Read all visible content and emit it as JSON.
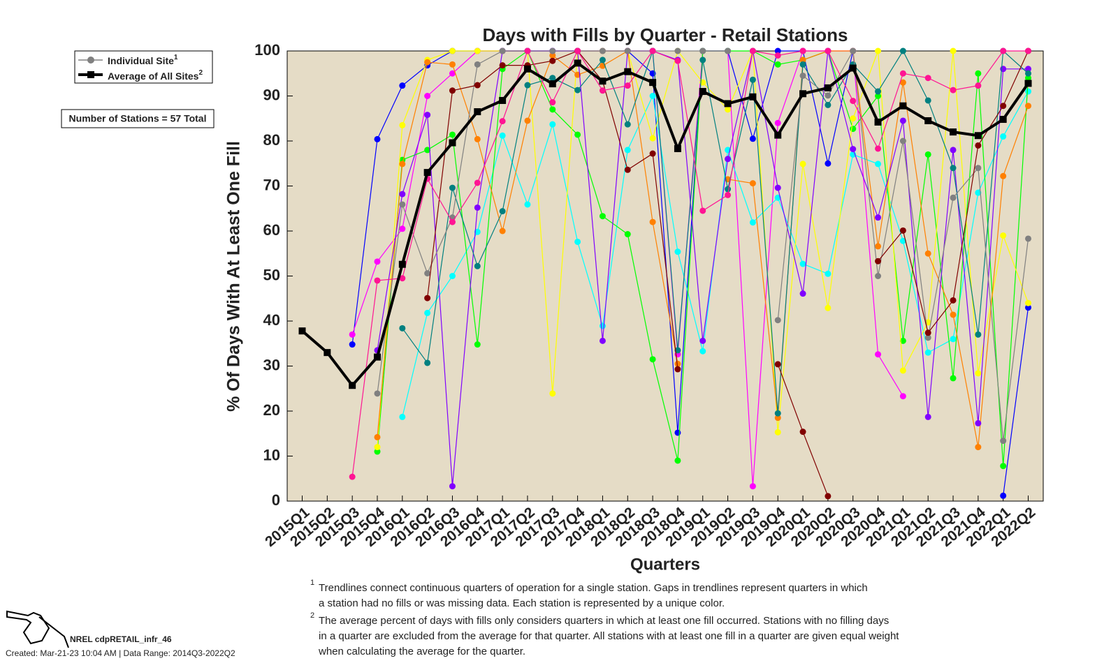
{
  "chart_data": {
    "type": "line",
    "title": "Days with Fills by Quarter - Retail Stations",
    "xlabel": "Quarters",
    "ylabel": "% Of Days With At Least One Fill",
    "categories": [
      "2015Q1",
      "2015Q2",
      "2015Q3",
      "2015Q4",
      "2016Q1",
      "2016Q2",
      "2016Q3",
      "2016Q4",
      "2017Q1",
      "2017Q2",
      "2017Q3",
      "2017Q4",
      "2018Q1",
      "2018Q2",
      "2018Q3",
      "2018Q4",
      "2019Q1",
      "2019Q2",
      "2019Q3",
      "2019Q4",
      "2020Q1",
      "2020Q2",
      "2020Q3",
      "2020Q4",
      "2021Q1",
      "2021Q2",
      "2021Q3",
      "2021Q4",
      "2022Q1",
      "2022Q2"
    ],
    "ylim": [
      0,
      100
    ],
    "yticks": [
      0,
      10,
      20,
      30,
      40,
      50,
      60,
      70,
      80,
      90,
      100
    ],
    "background": "#e5dcc6",
    "series": [
      {
        "name": "Individual Site",
        "note": "1",
        "color": "#808080",
        "sites": [
          {
            "color": "#0000ff",
            "values": [
              null,
              null,
              34.8,
              80.4,
              92.3,
              96.8,
              100,
              100,
              100,
              100,
              100,
              100,
              100,
              100,
              95,
              15.2,
              100,
              100,
              80.5,
              100,
              100,
              75,
              100,
              null,
              null,
              null,
              null,
              null,
              1.2,
              43
            ]
          },
          {
            "color": "#ff00ff",
            "values": [
              null,
              null,
              37,
              53.2,
              60.5,
              90,
              95,
              100,
              100,
              100,
              100,
              100,
              100,
              100,
              100,
              32.6,
              100,
              100,
              3.3,
              84,
              100,
              100,
              100,
              32.6,
              23.3,
              null,
              null,
              null,
              null,
              null
            ]
          },
          {
            "color": "#00ffff",
            "values": [
              null,
              null,
              null,
              null,
              18.7,
              41.8,
              50,
              59.8,
              81.2,
              65.9,
              83.7,
              57.6,
              38.9,
              78,
              90,
              55.4,
              33.3,
              78,
              61.9,
              67.4,
              52.7,
              50.5,
              77,
              74.9,
              57.8,
              33,
              36,
              68.5,
              81,
              91
            ]
          },
          {
            "color": "#00ff00",
            "values": [
              null,
              null,
              null,
              11,
              75.8,
              78,
              81.4,
              34.8,
              96,
              100,
              87,
              81.4,
              63.3,
              59.3,
              31.5,
              9,
              100,
              100,
              100,
              97,
              98,
              100,
              82.7,
              90,
              35.6,
              77,
              27.3,
              95,
              7.8,
              94
            ]
          },
          {
            "color": "#ffff00",
            "values": [
              null,
              null,
              null,
              12,
              83.5,
              98,
              100,
              100,
              100,
              100,
              23.9,
              100,
              100,
              100,
              80.6,
              100,
              93,
              87,
              100,
              15.3,
              74.9,
              42.9,
              85,
              100,
              29,
              39.7,
              100,
              28.4,
              59,
              44
            ]
          },
          {
            "color": "#ff8000",
            "values": [
              null,
              null,
              null,
              14.2,
              74.9,
              97.5,
              97,
              80.4,
              60,
              84.5,
              99,
              94.7,
              96.7,
              100,
              62,
              30.5,
              null,
              71.5,
              70.6,
              18.5,
              98,
              100,
              100,
              56.6,
              93,
              55,
              41.4,
              12,
              72.2,
              87.8
            ]
          },
          {
            "color": "#8000ff",
            "values": [
              null,
              null,
              null,
              33.5,
              68.2,
              85.8,
              3.3,
              65.2,
              100,
              100,
              100,
              100,
              35.6,
              100,
              100,
              98,
              35.6,
              76,
              100,
              69.6,
              46.1,
              100,
              78.2,
              63,
              84.5,
              18.7,
              78,
              17.3,
              96,
              96
            ]
          },
          {
            "color": "#008080",
            "values": [
              null,
              null,
              null,
              null,
              38.4,
              30.7,
              69.6,
              52.2,
              64.4,
              92.4,
              94,
              91.3,
              98,
              83.7,
              100,
              33.5,
              98,
              69.3,
              93.6,
              19.5,
              97,
              88,
              97,
              91,
              100,
              89,
              74,
              37,
              100,
              95
            ]
          },
          {
            "color": "#808080",
            "values": [
              null,
              null,
              null,
              23.9,
              65.9,
              50.6,
              63,
              97,
              100,
              100,
              100,
              100,
              100,
              100,
              100,
              100,
              100,
              100,
              null,
              40.2,
              94.5,
              90.1,
              100,
              50,
              80,
              36.3,
              67.4,
              74,
              13.4,
              58.3
            ]
          },
          {
            "color": "#800000",
            "values": [
              null,
              null,
              null,
              null,
              null,
              45.1,
              91.2,
              92.4,
              96.8,
              96.8,
              97.8,
              100,
              93.3,
              73.6,
              77.2,
              29.3,
              null,
              null,
              null,
              30.4,
              15.4,
              1.1,
              null,
              53.3,
              60.1,
              37.4,
              44.6,
              79,
              87.8,
              100
            ]
          },
          {
            "color": "#ff1493",
            "values": [
              null,
              null,
              5.4,
              49,
              49.5,
              71.6,
              62,
              70.7,
              84.4,
              100,
              88.6,
              100,
              91.2,
              92.3,
              100,
              97.8,
              64.5,
              68,
              100,
              99,
              100,
              100,
              88.9,
              78.3,
              95,
              94,
              91.3,
              92.3,
              100,
              100
            ]
          }
        ]
      },
      {
        "name": "Average of All Sites",
        "note": "2",
        "color": "#000000",
        "values": [
          37.8,
          33,
          25.7,
          32,
          52.6,
          73,
          79.6,
          86.5,
          89,
          96,
          92.7,
          97.3,
          93.3,
          95.4,
          93,
          78.3,
          91,
          88.3,
          89.8,
          81.3,
          90.5,
          91.8,
          96.2,
          84.2,
          87.8,
          84.5,
          82,
          81.2,
          84.8,
          92.8
        ]
      }
    ],
    "stations_note": "Number of Stations = 57 Total",
    "footnotes": [
      {
        "marker": "1",
        "lines": [
          "Trendlines connect continuous quarters of operation for a single station. Gaps in trendlines represent quarters in which",
          "a station had no fills or was missing data. Each station is represented by a unique color."
        ]
      },
      {
        "marker": "2",
        "lines": [
          "The average percent of days with fills only considers quarters in which at least one fill occurred. Stations with no filling days",
          "in a quarter are excluded from the average for that quarter. All stations with at least one fill in a quarter are given equal weight",
          "when calculating the average for the quarter."
        ]
      }
    ],
    "source": "NREL cdpRETAIL_infr_46",
    "created": "Created: Mar-21-23 10:04 AM | Data Range: 2014Q3-2022Q2"
  }
}
